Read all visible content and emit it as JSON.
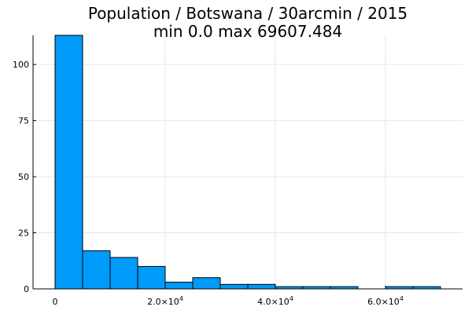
{
  "chart_data": {
    "type": "bar",
    "title": "Population / Botswana / 30arcmin / 2015",
    "subtitle": "min 0.0  max 69607.484",
    "xlabel": "",
    "ylabel": "",
    "bin_width": 5000,
    "bins": [
      {
        "x0": 0,
        "x1": 5000,
        "count": 113
      },
      {
        "x0": 5000,
        "x1": 10000,
        "count": 17
      },
      {
        "x0": 10000,
        "x1": 15000,
        "count": 14
      },
      {
        "x0": 15000,
        "x1": 20000,
        "count": 10
      },
      {
        "x0": 20000,
        "x1": 25000,
        "count": 3
      },
      {
        "x0": 25000,
        "x1": 30000,
        "count": 5
      },
      {
        "x0": 30000,
        "x1": 35000,
        "count": 2
      },
      {
        "x0": 35000,
        "x1": 40000,
        "count": 2
      },
      {
        "x0": 40000,
        "x1": 45000,
        "count": 1
      },
      {
        "x0": 45000,
        "x1": 50000,
        "count": 1
      },
      {
        "x0": 50000,
        "x1": 55000,
        "count": 1
      },
      {
        "x0": 55000,
        "x1": 60000,
        "count": 0
      },
      {
        "x0": 60000,
        "x1": 65000,
        "count": 1
      },
      {
        "x0": 65000,
        "x1": 70000,
        "count": 1
      }
    ],
    "xlim": [
      -4000,
      74000
    ],
    "ylim": [
      0,
      113
    ],
    "x_ticks": [
      {
        "value": 0,
        "label": "0",
        "exp": ""
      },
      {
        "value": 20000,
        "label": "2.0×10",
        "exp": "4"
      },
      {
        "value": 40000,
        "label": "4.0×10",
        "exp": "4"
      },
      {
        "value": 60000,
        "label": "6.0×10",
        "exp": "4"
      }
    ],
    "y_ticks": [
      {
        "value": 0,
        "label": "0"
      },
      {
        "value": 25,
        "label": "25"
      },
      {
        "value": 50,
        "label": "50"
      },
      {
        "value": 75,
        "label": "75"
      },
      {
        "value": 100,
        "label": "100"
      }
    ],
    "grid": true,
    "legend": false,
    "colors": {
      "bar": "#009af9",
      "grid": "#e6e6e6",
      "axis": "#000000"
    }
  }
}
